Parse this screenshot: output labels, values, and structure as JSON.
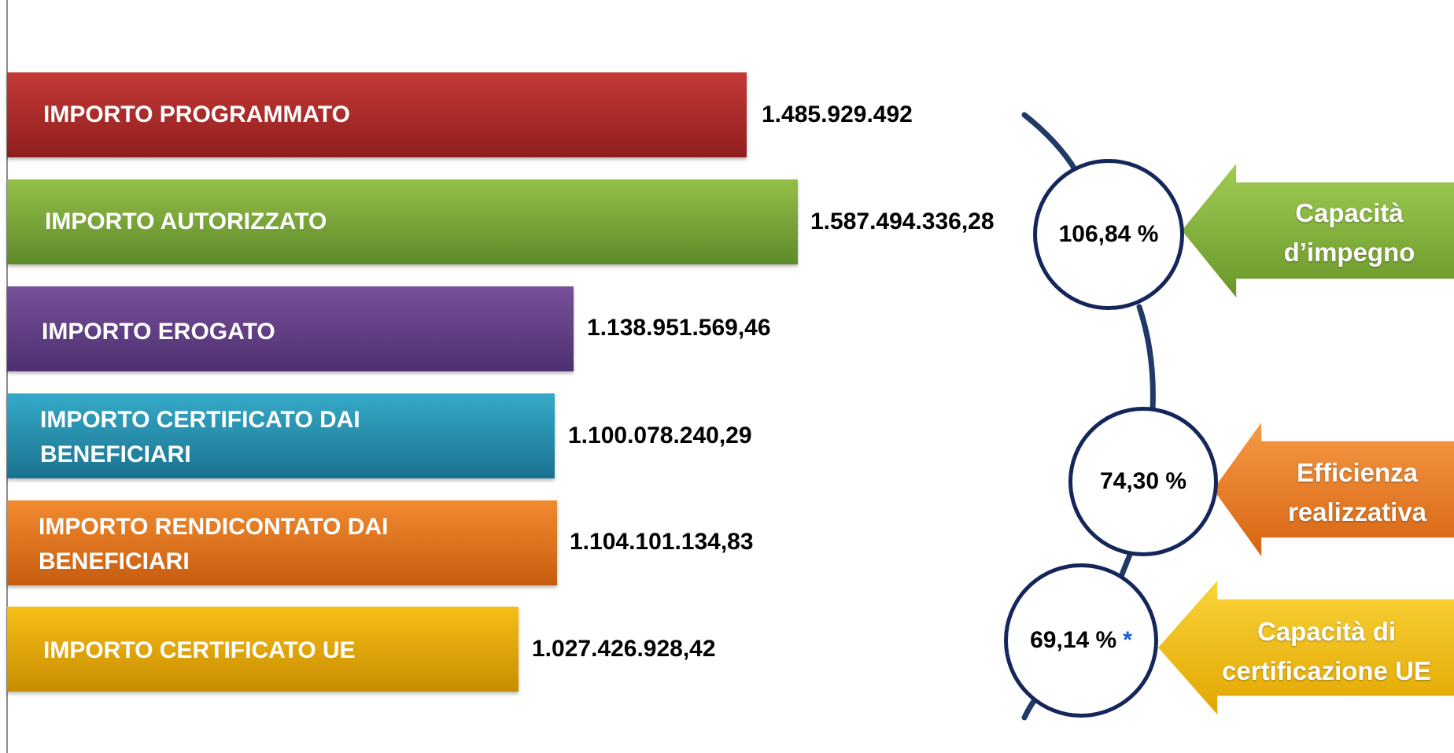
{
  "chart_data": {
    "type": "bar",
    "orientation": "horizontal",
    "categories": [
      "IMPORTO PROGRAMMATO",
      "IMPORTO AUTORIZZATO",
      "IMPORTO EROGATO",
      "IMPORTO CERTIFICATO DAI\nBENEFICIARI",
      "IMPORTO RENDICONTATO DAI\nBENEFICIARI",
      "IMPORTO CERTIFICATO UE"
    ],
    "values": [
      1485929492,
      1587494336.28,
      1138951569.46,
      1100078240.29,
      1104101134.83,
      1027426928.42
    ],
    "value_labels": [
      "1.485.929.492",
      "1.587.494.336,28",
      "1.138.951.569,46",
      "1.100.078.240,29",
      "1.104.101.134,83",
      "1.027.426.928,42"
    ],
    "bar_colors": [
      "#b0302f",
      "#7ea63a",
      "#634183",
      "#2a90b0",
      "#e5761f",
      "#e8a90a"
    ],
    "grid": false,
    "legend": "none"
  },
  "indicators": [
    {
      "value": "106,84 %",
      "label": "Capacità\nd’impegno",
      "color": "#8cbd45"
    },
    {
      "value": "74,30 %",
      "label": "Efficienza\nrealizzativa",
      "color": "#f08530"
    },
    {
      "value": "69,14 %",
      "asterisk": "*",
      "label": "Capacità di\ncertificazione UE",
      "color": "#f5c418"
    }
  ],
  "colors": {
    "connector": "#1f3a66",
    "circle_border": "#14265a",
    "asterisk": "#1f5fd6"
  }
}
